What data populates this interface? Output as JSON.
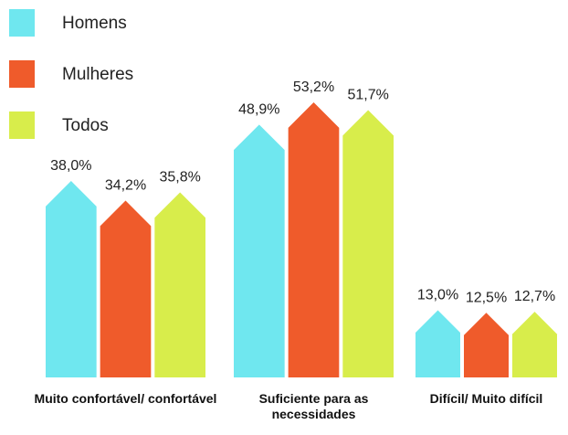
{
  "chart_data": {
    "type": "bar",
    "categories": [
      "Muito confortável/ confortável",
      "Suficiente para as necessidades",
      "Difícil/ Muito difícil"
    ],
    "series": [
      {
        "name": "Homens",
        "color": "#6fe7ef",
        "values": [
          38.0,
          48.9,
          13.0
        ],
        "value_labels": [
          "38,0%",
          "48,9%",
          "13,0%"
        ]
      },
      {
        "name": "Mulheres",
        "color": "#ef5b2b",
        "values": [
          34.2,
          53.2,
          12.5
        ],
        "value_labels": [
          "34,2%",
          "53,2%",
          "12,5%"
        ]
      },
      {
        "name": "Todos",
        "color": "#d8ed4b",
        "values": [
          35.8,
          51.7,
          12.7
        ],
        "value_labels": [
          "35,8%",
          "51,7%",
          "12,7%"
        ]
      }
    ],
    "legend": "top-left"
  }
}
